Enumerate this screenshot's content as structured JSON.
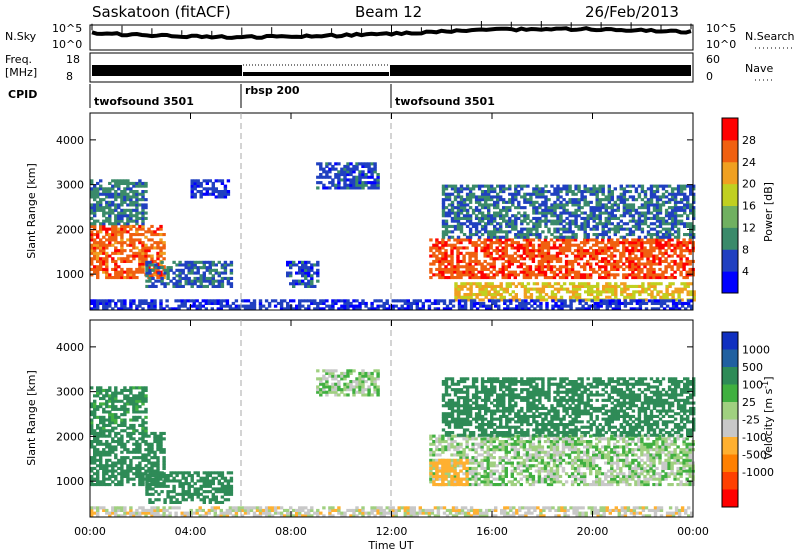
{
  "header": {
    "station": "Saskatoon (fitACF)",
    "beam": "Beam 12",
    "date": "26/Feb/2013"
  },
  "panels": {
    "nsky_label": "N.Sky",
    "nsky_ticks": [
      "10^5",
      "10^0"
    ],
    "nsearch_label": "N.Search",
    "nsearch_ticks": [
      "10^5",
      "10^0"
    ],
    "freq_label_1": "Freq.",
    "freq_label_2": "[MHz]",
    "freq_ticks": [
      "18",
      "8"
    ],
    "nave_label": "Nave",
    "nave_ticks": [
      "60",
      "0"
    ],
    "cpid_label": "CPID",
    "cpid_segments": [
      {
        "name": "twofsound 3501",
        "start": 0,
        "end": 6
      },
      {
        "name": "rbsp 200",
        "start": 6,
        "end": 12
      },
      {
        "name": "twofsound 3501",
        "start": 12,
        "end": 24
      }
    ]
  },
  "colors": {
    "power_scale": [
      "#0000ff",
      "#2040c0",
      "#3a8a6a",
      "#70b060",
      "#c0d020",
      "#f0a020",
      "#f06010",
      "#ff0000"
    ],
    "velocity_scale": [
      "#ff0000",
      "#ff4000",
      "#ff8000",
      "#ffb030",
      "#c8c8c8",
      "#a0d080",
      "#40b040",
      "#2e8b57",
      "#2060a0",
      "#1030c0"
    ]
  },
  "chart_data": [
    {
      "type": "heatmap",
      "name": "power",
      "ylabel": "Slant Range [km]",
      "xlabel": "Time UT",
      "x_ticks": [
        "00:00",
        "04:00",
        "08:00",
        "12:00",
        "16:00",
        "20:00",
        "00:00"
      ],
      "y_ticks": [
        "1000",
        "2000",
        "3000",
        "4000"
      ],
      "xlim": [
        0,
        24
      ],
      "ylim": [
        200,
        4600
      ],
      "colorbar_label": "Power [dB]",
      "colorbar_ticks": [
        "4",
        "8",
        "12",
        "16",
        "20",
        "24",
        "28"
      ],
      "regions": [
        {
          "t0": 0.0,
          "t1": 3.0,
          "r0": 900,
          "r1": 2100,
          "level": 26
        },
        {
          "t0": 0.0,
          "t1": 2.2,
          "r0": 2100,
          "r1": 3100,
          "level": 9
        },
        {
          "t0": 2.2,
          "t1": 5.6,
          "r0": 700,
          "r1": 1300,
          "level": 7
        },
        {
          "t0": 4.0,
          "t1": 5.5,
          "r0": 2700,
          "r1": 3100,
          "level": 5
        },
        {
          "t0": 7.8,
          "t1": 9.0,
          "r0": 700,
          "r1": 1300,
          "level": 6
        },
        {
          "t0": 9.0,
          "t1": 11.5,
          "r0": 2900,
          "r1": 3500,
          "level": 6
        },
        {
          "t0": 13.5,
          "t1": 24.0,
          "r0": 900,
          "r1": 1800,
          "level": 27
        },
        {
          "t0": 14.0,
          "t1": 24.0,
          "r0": 1800,
          "r1": 3000,
          "level": 8
        },
        {
          "t0": 14.5,
          "t1": 24.0,
          "r0": 400,
          "r1": 800,
          "level": 20
        },
        {
          "t0": 0.0,
          "t1": 24.0,
          "r0": 200,
          "r1": 400,
          "level": 5
        }
      ]
    },
    {
      "type": "heatmap",
      "name": "velocity",
      "ylabel": "Slant Range [km]",
      "xlabel": "Time UT",
      "x_ticks": [
        "00:00",
        "04:00",
        "08:00",
        "12:00",
        "16:00",
        "20:00",
        "00:00"
      ],
      "y_ticks": [
        "1000",
        "2000",
        "3000",
        "4000"
      ],
      "xlim": [
        0,
        24
      ],
      "ylim": [
        200,
        4600
      ],
      "colorbar_label": "Velocity [m s^-1]",
      "colorbar_ticks": [
        "1000",
        "500",
        "100",
        "25",
        "-25",
        "-100",
        "-500",
        "-1000"
      ],
      "regions": [
        {
          "t0": 0.0,
          "t1": 3.0,
          "r0": 900,
          "r1": 2100,
          "level": 200
        },
        {
          "t0": 0.0,
          "t1": 2.2,
          "r0": 2100,
          "r1": 3100,
          "level": 150
        },
        {
          "t0": 2.2,
          "t1": 5.6,
          "r0": 500,
          "r1": 1200,
          "level": 300
        },
        {
          "t0": 9.0,
          "t1": 11.5,
          "r0": 2900,
          "r1": 3500,
          "level": 0
        },
        {
          "t0": 13.5,
          "t1": 24.0,
          "r0": 900,
          "r1": 2000,
          "level": 0
        },
        {
          "t0": 14.0,
          "t1": 24.0,
          "r0": 2000,
          "r1": 3300,
          "level": 400
        },
        {
          "t0": 13.5,
          "t1": 15.0,
          "r0": 900,
          "r1": 1500,
          "level": -300
        },
        {
          "t0": 0.0,
          "t1": 24.0,
          "r0": 200,
          "r1": 400,
          "level": -60
        }
      ]
    }
  ]
}
